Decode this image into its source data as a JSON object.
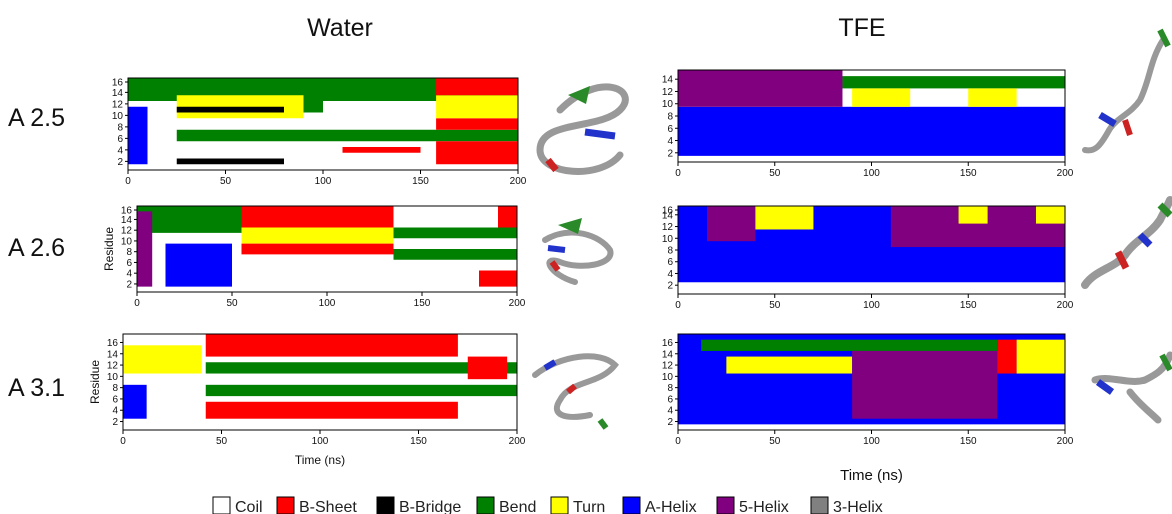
{
  "column_titles": [
    "Water",
    "TFE"
  ],
  "row_labels": [
    "A 2.5",
    "A 2.6",
    "A 3.1"
  ],
  "legend": [
    {
      "name": "Coil",
      "color": "#ffffff"
    },
    {
      "name": "B-Sheet",
      "color": "#ff0000"
    },
    {
      "name": "B-Bridge",
      "color": "#000000"
    },
    {
      "name": "Bend",
      "color": "#008000"
    },
    {
      "name": "Turn",
      "color": "#ffff00"
    },
    {
      "name": "A-Helix",
      "color": "#0000ff"
    },
    {
      "name": "5-Helix",
      "color": "#800080"
    },
    {
      "name": "3-Helix",
      "color": "#808080"
    }
  ],
  "chart_data": [
    {
      "type": "heatmap",
      "solvent": "Water",
      "peptide": "A 2.5",
      "xlabel": "",
      "ylabel": "",
      "xlim": [
        0,
        200
      ],
      "ylim": [
        1,
        16
      ],
      "x_ticks": [
        0,
        50,
        100,
        150,
        200
      ],
      "y_ticks": [
        2,
        4,
        6,
        8,
        10,
        12,
        14,
        16
      ],
      "blocks": [
        {
          "s": "Bend",
          "x": [
            0,
            200
          ],
          "r": [
            13,
            16
          ]
        },
        {
          "s": "A-Helix",
          "x": [
            0,
            10
          ],
          "r": [
            2,
            11
          ]
        },
        {
          "s": "Turn",
          "x": [
            25,
            90
          ],
          "r": [
            10,
            13
          ]
        },
        {
          "s": "B-Bridge",
          "x": [
            25,
            80
          ],
          "r": [
            11,
            11
          ]
        },
        {
          "s": "Bend",
          "x": [
            90,
            100
          ],
          "r": [
            11,
            16
          ]
        },
        {
          "s": "Bend",
          "x": [
            25,
            200
          ],
          "r": [
            6,
            7
          ]
        },
        {
          "s": "B-Bridge",
          "x": [
            25,
            80
          ],
          "r": [
            2,
            2
          ]
        },
        {
          "s": "B-Sheet",
          "x": [
            110,
            150
          ],
          "r": [
            4,
            4
          ]
        },
        {
          "s": "B-Sheet",
          "x": [
            158,
            200
          ],
          "r": [
            2,
            5
          ]
        },
        {
          "s": "B-Sheet",
          "x": [
            158,
            200
          ],
          "r": [
            8,
            9
          ]
        },
        {
          "s": "Turn",
          "x": [
            158,
            200
          ],
          "r": [
            10,
            13
          ]
        },
        {
          "s": "B-Sheet",
          "x": [
            158,
            200
          ],
          "r": [
            14,
            16
          ]
        }
      ]
    },
    {
      "type": "heatmap",
      "solvent": "TFE",
      "peptide": "A 2.5",
      "xlabel": "",
      "ylabel": "",
      "xlim": [
        0,
        200
      ],
      "ylim": [
        1,
        15
      ],
      "x_ticks": [
        0,
        50,
        100,
        150,
        200
      ],
      "y_ticks": [
        2,
        4,
        6,
        8,
        10,
        12,
        14
      ],
      "blocks": [
        {
          "s": "A-Helix",
          "x": [
            0,
            200
          ],
          "r": [
            2,
            9
          ]
        },
        {
          "s": "5-Helix",
          "x": [
            0,
            85
          ],
          "r": [
            10,
            15
          ]
        },
        {
          "s": "Bend",
          "x": [
            85,
            200
          ],
          "r": [
            13,
            14
          ]
        },
        {
          "s": "Turn",
          "x": [
            90,
            120
          ],
          "r": [
            10,
            12
          ]
        },
        {
          "s": "Turn",
          "x": [
            150,
            175
          ],
          "r": [
            10,
            12
          ]
        }
      ]
    },
    {
      "type": "heatmap",
      "solvent": "Water",
      "peptide": "A 2.6",
      "xlabel": "",
      "ylabel": "Residue",
      "xlim": [
        0,
        200
      ],
      "ylim": [
        1,
        16
      ],
      "x_ticks": [
        0,
        50,
        100,
        150,
        200
      ],
      "y_ticks": [
        2,
        4,
        6,
        8,
        10,
        12,
        14,
        16
      ],
      "blocks": [
        {
          "s": "Bend",
          "x": [
            0,
            55
          ],
          "r": [
            12,
            16
          ]
        },
        {
          "s": "5-Helix",
          "x": [
            0,
            8
          ],
          "r": [
            2,
            15
          ]
        },
        {
          "s": "A-Helix",
          "x": [
            15,
            50
          ],
          "r": [
            2,
            9
          ]
        },
        {
          "s": "B-Sheet",
          "x": [
            55,
            135
          ],
          "r": [
            13,
            16
          ]
        },
        {
          "s": "Turn",
          "x": [
            55,
            135
          ],
          "r": [
            10,
            12
          ]
        },
        {
          "s": "B-Sheet",
          "x": [
            55,
            135
          ],
          "r": [
            8,
            9
          ]
        },
        {
          "s": "Bend",
          "x": [
            135,
            200
          ],
          "r": [
            7,
            8
          ]
        },
        {
          "s": "Bend",
          "x": [
            135,
            200
          ],
          "r": [
            11,
            12
          ]
        },
        {
          "s": "B-Sheet",
          "x": [
            180,
            200
          ],
          "r": [
            2,
            4
          ]
        },
        {
          "s": "B-Sheet",
          "x": [
            190,
            200
          ],
          "r": [
            13,
            16
          ]
        }
      ]
    },
    {
      "type": "heatmap",
      "solvent": "TFE",
      "peptide": "A 2.6",
      "xlabel": "",
      "ylabel": "",
      "xlim": [
        0,
        200
      ],
      "ylim": [
        1,
        15
      ],
      "x_ticks": [
        0,
        50,
        100,
        150,
        200
      ],
      "y_ticks": [
        2,
        4,
        6,
        8,
        10,
        12,
        14,
        16
      ],
      "blocks": [
        {
          "s": "A-Helix",
          "x": [
            0,
            200
          ],
          "r": [
            3,
            15
          ]
        },
        {
          "s": "5-Helix",
          "x": [
            15,
            40
          ],
          "r": [
            10,
            15
          ]
        },
        {
          "s": "Turn",
          "x": [
            40,
            70
          ],
          "r": [
            12,
            15
          ]
        },
        {
          "s": "5-Helix",
          "x": [
            110,
            200
          ],
          "r": [
            9,
            15
          ]
        },
        {
          "s": "Turn",
          "x": [
            145,
            160
          ],
          "r": [
            13,
            15
          ]
        },
        {
          "s": "Turn",
          "x": [
            185,
            200
          ],
          "r": [
            13,
            15
          ]
        }
      ]
    },
    {
      "type": "heatmap",
      "solvent": "Water",
      "peptide": "A 3.1",
      "xlabel": "Time (ns)",
      "ylabel": "Residue",
      "xlim": [
        0,
        200
      ],
      "ylim": [
        1,
        17
      ],
      "x_ticks": [
        0,
        50,
        100,
        150,
        200
      ],
      "y_ticks": [
        2,
        4,
        6,
        8,
        10,
        12,
        14,
        16
      ],
      "blocks": [
        {
          "s": "Turn",
          "x": [
            0,
            40
          ],
          "r": [
            11,
            15
          ]
        },
        {
          "s": "A-Helix",
          "x": [
            0,
            12
          ],
          "r": [
            3,
            8
          ]
        },
        {
          "s": "B-Sheet",
          "x": [
            42,
            170
          ],
          "r": [
            14,
            17
          ]
        },
        {
          "s": "Bend",
          "x": [
            42,
            200
          ],
          "r": [
            11,
            12
          ]
        },
        {
          "s": "Bend",
          "x": [
            42,
            200
          ],
          "r": [
            7,
            8
          ]
        },
        {
          "s": "B-Sheet",
          "x": [
            42,
            170
          ],
          "r": [
            3,
            5
          ]
        },
        {
          "s": "B-Sheet",
          "x": [
            175,
            195
          ],
          "r": [
            10,
            13
          ]
        }
      ]
    },
    {
      "type": "heatmap",
      "solvent": "TFE",
      "peptide": "A 3.1",
      "xlabel": "Time (ns)",
      "ylabel": "",
      "xlim": [
        0,
        200
      ],
      "ylim": [
        1,
        17
      ],
      "x_ticks": [
        0,
        50,
        100,
        150,
        200
      ],
      "y_ticks": [
        2,
        4,
        6,
        8,
        10,
        12,
        14,
        16
      ],
      "blocks": [
        {
          "s": "A-Helix",
          "x": [
            0,
            200
          ],
          "r": [
            2,
            17
          ]
        },
        {
          "s": "Bend",
          "x": [
            12,
            165
          ],
          "r": [
            15,
            16
          ]
        },
        {
          "s": "Turn",
          "x": [
            25,
            90
          ],
          "r": [
            11,
            13
          ]
        },
        {
          "s": "5-Helix",
          "x": [
            90,
            165
          ],
          "r": [
            3,
            14
          ]
        },
        {
          "s": "B-Sheet",
          "x": [
            165,
            175
          ],
          "r": [
            11,
            16
          ]
        },
        {
          "s": "Turn",
          "x": [
            175,
            200
          ],
          "r": [
            11,
            16
          ]
        }
      ]
    }
  ]
}
